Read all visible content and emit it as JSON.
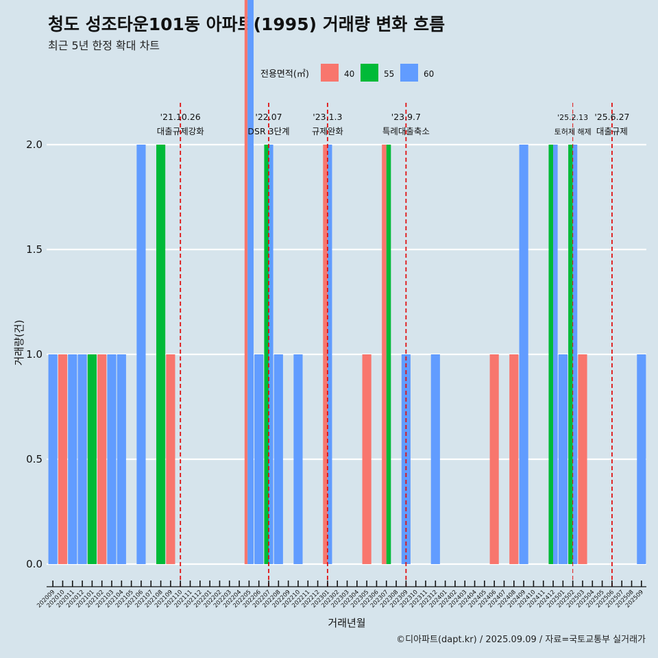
{
  "title": "청도 성조타운101동 아파트(1995) 거래량 변화 흐름",
  "subtitle": "최근 5년 한정 확대 차트",
  "caption": "©디아파트(dapt.kr) / 2025.09.09 / 자료=국토교통부 실거래가",
  "chart_data": {
    "type": "bar",
    "xlabel": "거래년월",
    "ylabel": "거래량(건)",
    "ylim": [
      0,
      2
    ],
    "yticks": [
      "0.0",
      "0.5",
      "1.0",
      "1.5",
      "2.0"
    ],
    "legend": {
      "title": "전용면적(㎡)",
      "position": "top",
      "items": [
        {
          "label": "40",
          "color": "#f8766d"
        },
        {
          "label": "55",
          "color": "#00ba38"
        },
        {
          "label": "60",
          "color": "#619cff"
        }
      ]
    },
    "categories": [
      "202009",
      "202010",
      "202011",
      "202012",
      "202101",
      "202102",
      "202103",
      "202104",
      "202105",
      "202106",
      "202107",
      "202108",
      "202109",
      "202110",
      "202111",
      "202112",
      "202201",
      "202202",
      "202203",
      "202204",
      "202205",
      "202206",
      "202207",
      "202208",
      "202209",
      "202210",
      "202211",
      "202212",
      "202301",
      "202302",
      "202303",
      "202304",
      "202305",
      "202306",
      "202307",
      "202308",
      "202309",
      "202310",
      "202311",
      "202312",
      "202401",
      "202402",
      "202403",
      "202404",
      "202405",
      "202406",
      "202407",
      "202408",
      "202409",
      "202410",
      "202411",
      "202412",
      "202501",
      "202502",
      "202503",
      "202504",
      "202505",
      "202506",
      "202507",
      "202508",
      "202509"
    ],
    "series": [
      {
        "name": "40",
        "color": "#f8766d",
        "values": [
          0,
          1,
          0,
          0,
          0,
          1,
          0,
          0,
          0,
          0,
          0,
          0,
          1,
          0,
          0,
          0,
          0,
          0,
          0,
          0,
          1,
          0,
          0,
          0,
          0,
          0,
          0,
          0,
          1,
          0,
          0,
          0,
          1,
          0,
          1,
          0,
          0,
          0,
          0,
          0,
          0,
          0,
          0,
          0,
          0,
          1,
          0,
          1,
          0,
          0,
          0,
          0,
          0,
          0,
          1,
          0,
          0,
          0,
          0,
          0,
          0
        ]
      },
      {
        "name": "55",
        "color": "#00ba38",
        "values": [
          0,
          0,
          0,
          0,
          1,
          0,
          0,
          0,
          0,
          0,
          0,
          2,
          0,
          0,
          0,
          0,
          0,
          0,
          0,
          0,
          0,
          0,
          1,
          0,
          0,
          0,
          0,
          0,
          0,
          0,
          0,
          0,
          0,
          0,
          1,
          0,
          0,
          0,
          0,
          0,
          0,
          0,
          0,
          0,
          0,
          0,
          0,
          0,
          0,
          0,
          0,
          1,
          0,
          1,
          0,
          0,
          0,
          0,
          0,
          0,
          0
        ]
      },
      {
        "name": "60",
        "color": "#619cff",
        "values": [
          1,
          0,
          1,
          1,
          0,
          0,
          1,
          1,
          0,
          2,
          0,
          0,
          0,
          0,
          0,
          0,
          0,
          0,
          0,
          0,
          2,
          1,
          1,
          1,
          0,
          1,
          0,
          0,
          1,
          0,
          0,
          0,
          0,
          0,
          0,
          0,
          1,
          0,
          0,
          1,
          0,
          0,
          0,
          0,
          0,
          0,
          0,
          0,
          2,
          0,
          0,
          1,
          1,
          1,
          0,
          0,
          0,
          0,
          0,
          0,
          1
        ]
      }
    ],
    "events": [
      {
        "date": "'21.10.26",
        "label": "대출규제강화",
        "at": "202110"
      },
      {
        "date": "'22.07",
        "label": "DSR 3단계",
        "at": "202207"
      },
      {
        "date": "'23.1.3",
        "label": "규제완화",
        "at": "202301"
      },
      {
        "date": "'23.9.7",
        "label": "특례대출축소",
        "at": "202309"
      },
      {
        "date": "'25.2.13",
        "label": "토허제 해제",
        "at": "202502"
      },
      {
        "date": "'25.6.27",
        "label": "대출규제",
        "at": "202506"
      }
    ]
  }
}
